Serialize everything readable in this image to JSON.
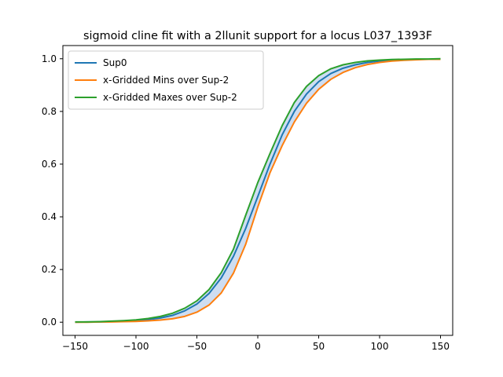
{
  "chart_data": {
    "type": "line",
    "title": "sigmoid cline fit with a 2llunit support for a locus L037_1393F",
    "xlabel": "",
    "ylabel": "",
    "xlim": [
      -160,
      160
    ],
    "ylim": [
      -0.05,
      1.05
    ],
    "xticks": [
      -150,
      -100,
      -50,
      0,
      50,
      100,
      150
    ],
    "xtick_labels": [
      "−150",
      "−100",
      "−50",
      "0",
      "50",
      "100",
      "150"
    ],
    "yticks": [
      0.0,
      0.2,
      0.4,
      0.6,
      0.8,
      1.0
    ],
    "ytick_labels": [
      "0.0",
      "0.2",
      "0.4",
      "0.6",
      "0.8",
      "1.0"
    ],
    "grid": false,
    "legend_position": "upper-left",
    "band_color": "#aec7e8",
    "x": [
      -150,
      -140,
      -130,
      -120,
      -110,
      -100,
      -90,
      -80,
      -70,
      -60,
      -50,
      -40,
      -30,
      -20,
      -10,
      0,
      10,
      20,
      30,
      40,
      50,
      60,
      70,
      80,
      90,
      100,
      110,
      120,
      130,
      140,
      150
    ],
    "series": [
      {
        "name": "Sup0",
        "color": "#1f77b4",
        "values": [
          0.0,
          0.001,
          0.001,
          0.002,
          0.004,
          0.006,
          0.01,
          0.016,
          0.026,
          0.043,
          0.069,
          0.109,
          0.168,
          0.25,
          0.355,
          0.477,
          0.6,
          0.711,
          0.8,
          0.866,
          0.913,
          0.944,
          0.964,
          0.977,
          0.986,
          0.991,
          0.994,
          0.996,
          0.998,
          0.998,
          0.999
        ]
      },
      {
        "name": "x-Gridded Mins over Sup-2",
        "color": "#ff7f0e",
        "values": [
          0.0,
          0.0,
          0.001,
          0.001,
          0.002,
          0.003,
          0.005,
          0.008,
          0.013,
          0.022,
          0.038,
          0.065,
          0.111,
          0.186,
          0.295,
          0.437,
          0.567,
          0.67,
          0.76,
          0.831,
          0.884,
          0.922,
          0.948,
          0.966,
          0.978,
          0.986,
          0.991,
          0.994,
          0.996,
          0.998,
          0.998
        ]
      },
      {
        "name": "x-Gridded Maxes over Sup-2",
        "color": "#2ca02c",
        "values": [
          0.001,
          0.001,
          0.002,
          0.004,
          0.006,
          0.009,
          0.014,
          0.022,
          0.034,
          0.053,
          0.081,
          0.124,
          0.188,
          0.277,
          0.405,
          0.53,
          0.64,
          0.746,
          0.834,
          0.895,
          0.936,
          0.962,
          0.977,
          0.986,
          0.992,
          0.995,
          0.997,
          0.998,
          0.999,
          0.999,
          1.0
        ]
      }
    ]
  }
}
